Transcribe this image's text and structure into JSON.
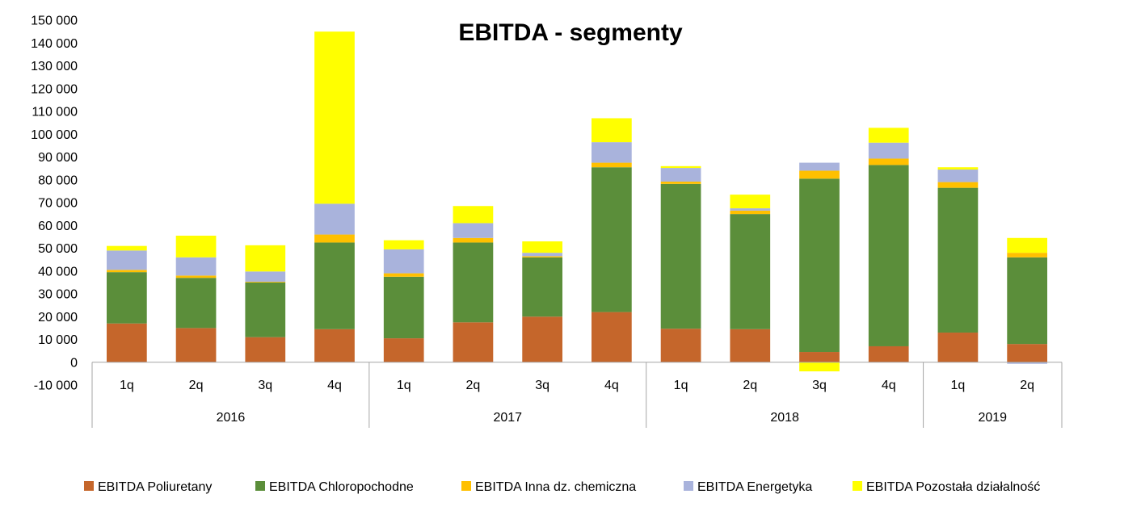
{
  "chart_data": {
    "type": "bar",
    "stacked": true,
    "title": "EBITDA - segmenty",
    "xlabel": "",
    "ylabel": "",
    "ylim": [
      -10000,
      150000
    ],
    "ytick_step": 10000,
    "ytick_labels": [
      "-10 000",
      "0",
      "10 000",
      "20 000",
      "30 000",
      "40 000",
      "50 000",
      "60 000",
      "70 000",
      "80 000",
      "90 000",
      "100 000",
      "110 000",
      "120 000",
      "130 000",
      "140 000",
      "150 000"
    ],
    "grid": false,
    "legend_position": "bottom",
    "groups": [
      {
        "label": "2016",
        "categories": [
          "1q",
          "2q",
          "3q",
          "4q"
        ]
      },
      {
        "label": "2017",
        "categories": [
          "1q",
          "2q",
          "3q",
          "4q"
        ]
      },
      {
        "label": "2018",
        "categories": [
          "1q",
          "2q",
          "3q",
          "4q"
        ]
      },
      {
        "label": "2019",
        "categories": [
          "1q",
          "2q"
        ]
      }
    ],
    "series": [
      {
        "name": "EBITDA Poliuretany",
        "color": "#C5662B",
        "values": [
          17000,
          15000,
          11000,
          14500,
          10500,
          17500,
          20000,
          22000,
          14700,
          14500,
          4500,
          7000,
          13000,
          8000
        ]
      },
      {
        "name": "EBITDA Chloropochodne",
        "color": "#5B8E3A",
        "values": [
          22500,
          22000,
          24000,
          38000,
          27000,
          35000,
          26000,
          63500,
          63500,
          50500,
          76000,
          79500,
          63500,
          38000
        ]
      },
      {
        "name": "EBITDA Inna dz. chemiczna",
        "color": "#FFC000",
        "values": [
          1000,
          1000,
          300,
          3500,
          1500,
          2000,
          500,
          2000,
          1000,
          1500,
          3500,
          2800,
          2500,
          2000
        ]
      },
      {
        "name": "EBITDA Energetyka",
        "color": "#A9B3DC",
        "values": [
          8500,
          8000,
          4500,
          13500,
          10500,
          6500,
          1500,
          9000,
          6000,
          1000,
          3500,
          7000,
          5500,
          -700
        ]
      },
      {
        "name": "EBITDA Pozostała działalność",
        "color": "#FFFF00",
        "values": [
          2000,
          9500,
          11500,
          75500,
          4000,
          7500,
          5000,
          10500,
          800,
          6000,
          -4000,
          6500,
          1000,
          6500
        ]
      }
    ]
  }
}
